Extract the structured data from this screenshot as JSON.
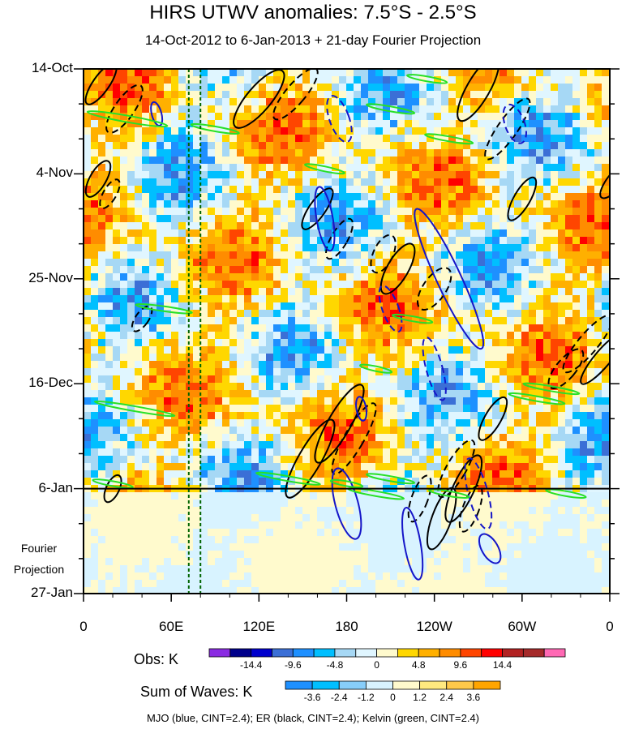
{
  "chart_data": {
    "type": "heatmap",
    "title": "HIRS UTWV anomalies: 7.5°S - 2.5°S",
    "subtitle": "14-Oct-2012 to 6-Jan-2013 + 21-day Fourier Projection",
    "x_ticks": [
      "0",
      "60E",
      "120E",
      "180",
      "120W",
      "60W",
      "0"
    ],
    "x_values": [
      0,
      60,
      120,
      180,
      240,
      300,
      360
    ],
    "y_ticks": [
      "14-Oct",
      "4-Nov",
      "25-Nov",
      "16-Dec",
      "6-Jan",
      "27-Jan"
    ],
    "y_days": [
      0,
      21,
      42,
      63,
      84,
      105
    ],
    "fourier_label_1": "Fourier",
    "fourier_label_2": "Projection",
    "projection_start_day": 84,
    "dashed_longitudes": [
      72,
      80
    ],
    "obs_colorbar": {
      "label": "Obs: K",
      "ticks": [
        "-14.4",
        "-9.6",
        "-4.8",
        "0",
        "4.8",
        "9.6",
        "14.4"
      ],
      "colors": [
        "#8a2be2",
        "#00008b",
        "#0000cd",
        "#3b6fd6",
        "#1e90ff",
        "#00bfff",
        "#a6d8f5",
        "#e0f6ff",
        "#fffacd",
        "#ffd700",
        "#ffb000",
        "#ff8c00",
        "#ff4500",
        "#ff0000",
        "#b22222",
        "#a52a2a",
        "#ff69b4"
      ]
    },
    "sow_colorbar": {
      "label": "Sum of Waves: K",
      "ticks": [
        "-3.6",
        "-2.4",
        "-1.2",
        "0",
        "1.2",
        "2.4",
        "3.6"
      ],
      "colors": [
        "#1e90ff",
        "#00bfff",
        "#87cefa",
        "#d8f3ff",
        "#fffacd",
        "#ffe97f",
        "#ffc94a",
        "#ffa500"
      ]
    },
    "footer": "MJO (blue, CINT=2.4); ER (black, CINT=2.4); Kelvin (green, CINT=2.4)"
  }
}
